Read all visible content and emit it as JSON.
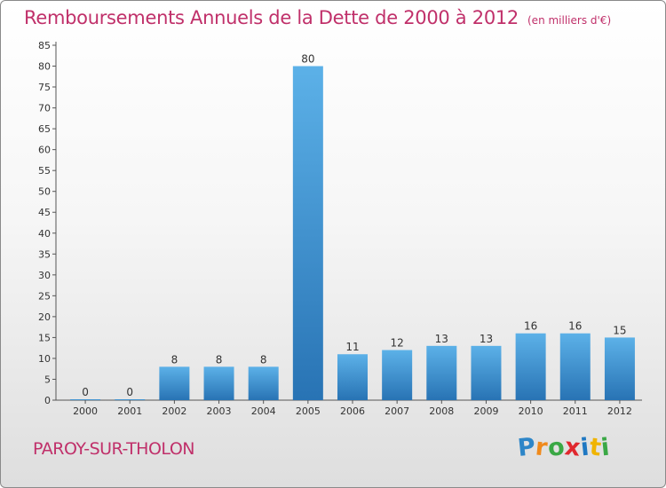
{
  "title": "Remboursements Annuels de la Dette de 2000 à 2012",
  "unit": "(en milliers d'€)",
  "commune": "PAROY-SUR-THOLON",
  "logo": {
    "letters": [
      "P",
      "r",
      "o",
      "x",
      "i",
      "t",
      "i"
    ],
    "colors": [
      "#2e86c8",
      "#f08a1c",
      "#3aa845",
      "#e0282e",
      "#1f78c2",
      "#f0b400",
      "#3aa845"
    ]
  },
  "colors": {
    "title": "#c0306a",
    "bar_light": "#5cb1e8",
    "bar_dark": "#2873b4",
    "axis": "#555555"
  },
  "chart_data": {
    "type": "bar",
    "title": "Remboursements Annuels de la Dette de 2000 à 2012",
    "categories": [
      "2000",
      "2001",
      "2002",
      "2003",
      "2004",
      "2005",
      "2006",
      "2007",
      "2008",
      "2009",
      "2010",
      "2011",
      "2012"
    ],
    "values": [
      0,
      0,
      8,
      8,
      8,
      80,
      11,
      12,
      13,
      13,
      16,
      16,
      15
    ],
    "ylim": [
      0,
      85
    ],
    "yticks": [
      0,
      5,
      10,
      15,
      20,
      25,
      30,
      35,
      40,
      45,
      50,
      55,
      60,
      65,
      70,
      75,
      80,
      85
    ],
    "grid": false,
    "data_labels": true
  }
}
